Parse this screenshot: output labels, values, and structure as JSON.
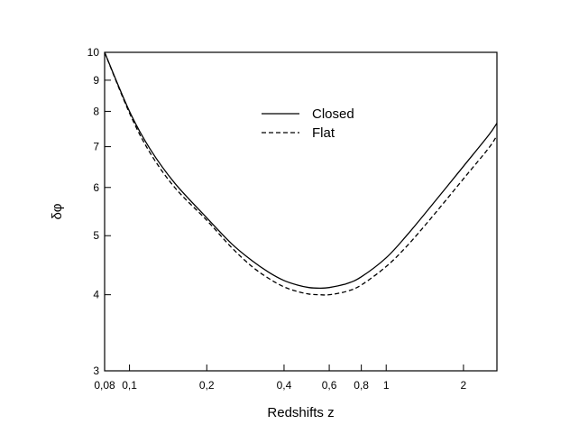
{
  "chart_data": {
    "type": "line",
    "xlabel": "Redshifts z",
    "ylabel": "δφ",
    "x_scale": "log",
    "y_scale": "log",
    "xlim": [
      0.08,
      2.7
    ],
    "ylim": [
      3,
      10
    ],
    "x_ticks": [
      {
        "value": 0.08,
        "label": "0,08"
      },
      {
        "value": 0.1,
        "label": "0,1"
      },
      {
        "value": 0.2,
        "label": "0,2"
      },
      {
        "value": 0.4,
        "label": "0,4"
      },
      {
        "value": 0.6,
        "label": "0,6"
      },
      {
        "value": 0.8,
        "label": "0,8"
      },
      {
        "value": 1,
        "label": "1"
      },
      {
        "value": 2,
        "label": "2"
      }
    ],
    "y_ticks": [
      {
        "value": 3,
        "label": "3"
      },
      {
        "value": 4,
        "label": "4"
      },
      {
        "value": 5,
        "label": "5"
      },
      {
        "value": 6,
        "label": "6"
      },
      {
        "value": 7,
        "label": "7"
      },
      {
        "value": 8,
        "label": "8"
      },
      {
        "value": 9,
        "label": "9"
      },
      {
        "value": 10,
        "label": "10"
      }
    ],
    "legend_position": "top-center",
    "series": [
      {
        "name": "Closed",
        "style": "solid",
        "x": [
          0.08,
          0.1,
          0.12,
          0.15,
          0.2,
          0.25,
          0.3,
          0.35,
          0.4,
          0.45,
          0.5,
          0.55,
          0.6,
          0.7,
          0.8,
          1.0,
          1.2,
          1.5,
          2.0,
          2.5,
          2.7
        ],
        "y": [
          10.0,
          8.0,
          6.95,
          6.1,
          5.35,
          4.85,
          4.55,
          4.35,
          4.22,
          4.15,
          4.11,
          4.1,
          4.11,
          4.17,
          4.28,
          4.6,
          5.0,
          5.6,
          6.5,
          7.3,
          7.65
        ]
      },
      {
        "name": "Flat",
        "style": "dashed",
        "x": [
          0.08,
          0.1,
          0.12,
          0.15,
          0.2,
          0.25,
          0.3,
          0.35,
          0.4,
          0.45,
          0.5,
          0.55,
          0.6,
          0.7,
          0.8,
          1.0,
          1.2,
          1.5,
          2.0,
          2.5,
          2.7
        ],
        "y": [
          10.0,
          7.95,
          6.85,
          6.0,
          5.3,
          4.78,
          4.45,
          4.25,
          4.12,
          4.05,
          4.01,
          4.0,
          4.0,
          4.05,
          4.15,
          4.45,
          4.8,
          5.35,
          6.2,
          6.95,
          7.3
        ]
      }
    ]
  }
}
